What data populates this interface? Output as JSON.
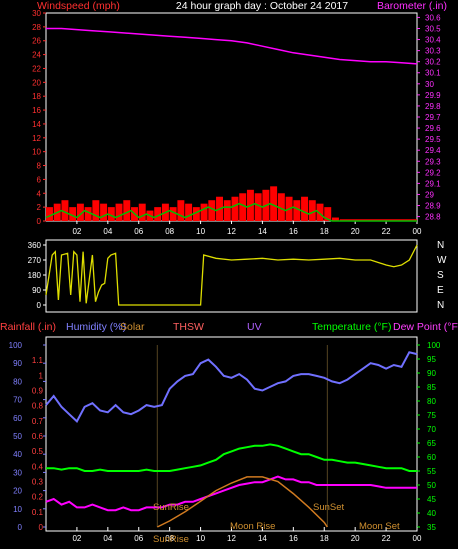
{
  "header": {
    "title": "24 hour graph day : October 24 2017",
    "left_label": "Windspeed (mph)",
    "right_label": "Barometer (.in)"
  },
  "colors": {
    "background": "#000000",
    "frame": "#ffffff",
    "wind": "#ff0000",
    "gust": "#00c000",
    "barometer": "#ff00ff",
    "direction": "#dede00",
    "humidity": "#7070ff",
    "temperature": "#00ff00",
    "dewpoint": "#ff00ff",
    "solar": "#d07a20",
    "rain_axis": "#ff4040",
    "temp_axis": "#00ff00",
    "sun_moon_text": "#d09030"
  },
  "chart_data": [
    {
      "type": "line",
      "title": "24 hour graph day : October 24 2017",
      "x_ticks": [
        "02",
        "04",
        "06",
        "08",
        "10",
        "12",
        "14",
        "16",
        "18",
        "20",
        "22",
        "00"
      ],
      "y_left": {
        "label": "Windspeed (mph)",
        "ticks": [
          0,
          2,
          4,
          6,
          8,
          10,
          12,
          14,
          16,
          18,
          20,
          22,
          24,
          26,
          28,
          30
        ],
        "range": [
          0,
          30
        ]
      },
      "y_right": {
        "label": "Barometer (.in)",
        "ticks": [
          "28.8",
          "28.9",
          "29",
          "29.1",
          "29.2",
          "29.3",
          "29.4",
          "29.5",
          "29.6",
          "29.7",
          "29.8",
          "29.9",
          "30",
          "30.1",
          "30.2",
          "30.3",
          "30.4",
          "30.5",
          "30.6"
        ],
        "range": [
          28.76,
          30.64
        ]
      },
      "series": [
        {
          "name": "Windspeed",
          "axis": "left",
          "x": [
            0,
            0.5,
            1,
            1.5,
            2,
            2.5,
            3,
            3.5,
            4,
            4.5,
            5,
            5.5,
            6,
            6.5,
            7,
            7.5,
            8,
            8.5,
            9,
            9.5,
            10,
            10.5,
            11,
            11.5,
            12,
            12.5,
            13,
            13.5,
            14,
            14.5,
            15,
            15.5,
            16,
            16.5,
            17,
            17.5,
            18,
            18.5,
            19,
            20,
            21,
            22,
            23,
            24
          ],
          "y": [
            2,
            2.5,
            3,
            2,
            2.5,
            2,
            3,
            2.5,
            2,
            2.5,
            3,
            2,
            2.5,
            1.5,
            2,
            2.5,
            2,
            3,
            2.5,
            2,
            2.5,
            3,
            3.5,
            3,
            3.5,
            4,
            4.5,
            4,
            4.5,
            5,
            4,
            3.5,
            3,
            3.5,
            3,
            2.5,
            2,
            0.5,
            0,
            0,
            0,
            0,
            0,
            0
          ]
        },
        {
          "name": "Wind gust",
          "axis": "left",
          "x": [
            0,
            0.5,
            1,
            1.5,
            2,
            2.5,
            3,
            3.5,
            4,
            4.5,
            5,
            5.5,
            6,
            6.5,
            7,
            7.5,
            8,
            8.5,
            9,
            9.5,
            10,
            10.5,
            11,
            11.5,
            12,
            12.5,
            13,
            13.5,
            14,
            14.5,
            15,
            15.5,
            16,
            16.5,
            17,
            17.5,
            18,
            18.5,
            19,
            24
          ],
          "y": [
            0.5,
            1,
            1.5,
            1,
            0.5,
            1.5,
            1,
            0.5,
            1,
            0.5,
            1,
            1.5,
            0.5,
            1,
            0.5,
            1,
            1.5,
            1,
            0.5,
            1,
            1.5,
            2,
            1.5,
            2,
            2,
            2.5,
            2,
            2.5,
            2,
            2.5,
            2,
            1.5,
            2,
            1.5,
            1,
            1.5,
            0.5,
            0,
            0,
            0
          ]
        },
        {
          "name": "Barometer",
          "axis": "right",
          "x": [
            0,
            1,
            2,
            3,
            4,
            5,
            6,
            7,
            8,
            9,
            10,
            11,
            12,
            13,
            14,
            15,
            16,
            17,
            18,
            19,
            20,
            21,
            22,
            23,
            24
          ],
          "y": [
            30.5,
            30.5,
            30.49,
            30.48,
            30.47,
            30.46,
            30.45,
            30.44,
            30.43,
            30.42,
            30.41,
            30.4,
            30.39,
            30.37,
            30.34,
            30.31,
            30.28,
            30.26,
            30.24,
            30.22,
            30.21,
            30.2,
            30.2,
            30.19,
            30.18
          ]
        }
      ]
    },
    {
      "type": "line",
      "x_ticks": [],
      "y_left": {
        "ticks": [
          0,
          90,
          180,
          270,
          360
        ],
        "range": [
          0,
          360
        ]
      },
      "y_right": {
        "ticks": [
          "N",
          "W",
          "S",
          "E",
          "N"
        ]
      },
      "series": [
        {
          "name": "Wind direction",
          "x": [
            0,
            0.4,
            0.6,
            0.8,
            1,
            1.4,
            1.6,
            1.8,
            2,
            2.2,
            2.4,
            2.6,
            3,
            3.2,
            3.4,
            3.6,
            3.8,
            4,
            4.2,
            4.5,
            4.7,
            5,
            6,
            7,
            8,
            9,
            10,
            10.2,
            11,
            12,
            13,
            14,
            15,
            16,
            17,
            18,
            19,
            20,
            21,
            22,
            22.5,
            23,
            23.5,
            24
          ],
          "y": [
            60,
            300,
            320,
            30,
            300,
            310,
            60,
            320,
            300,
            20,
            320,
            10,
            300,
            20,
            80,
            120,
            130,
            280,
            300,
            310,
            0,
            0,
            0,
            0,
            0,
            0,
            0,
            300,
            280,
            270,
            275,
            280,
            270,
            275,
            270,
            275,
            280,
            270,
            270,
            240,
            230,
            240,
            270,
            360
          ]
        }
      ]
    },
    {
      "type": "line",
      "x_ticks": [
        "02",
        "04",
        "06",
        "08",
        "10",
        "12",
        "14",
        "16",
        "18",
        "20",
        "22",
        "00"
      ],
      "legend": [
        "Rainfall (.in)",
        "Humidity (%)",
        "Solar",
        "THSW",
        "UV",
        "Temperature (°F)",
        "Dew Point (°F)"
      ],
      "y_left_rain": {
        "label": "Rainfall (.in)",
        "ticks": [
          "0",
          "0.1",
          "0.2",
          "0.3",
          "0.4",
          "0.5",
          "0.6",
          "0.7",
          "0.8",
          "0.9",
          "1",
          "1.1"
        ],
        "range": [
          0,
          1.2
        ]
      },
      "y_left_humidity": {
        "label": "Humidity (%)",
        "ticks": [
          0,
          10,
          20,
          30,
          40,
          50,
          60,
          70,
          80,
          90,
          100
        ],
        "range": [
          0,
          100
        ]
      },
      "y_right": {
        "label": "Temperature (°F)",
        "ticks": [
          35,
          40,
          45,
          50,
          55,
          60,
          65,
          70,
          75,
          80,
          85,
          90,
          95,
          100
        ],
        "range": [
          35,
          100
        ]
      },
      "annotations": [
        "SunRise",
        "SunSet",
        "Moon Rise",
        "Moon Set",
        "SunRise"
      ],
      "series": [
        {
          "name": "Humidity (%)",
          "axis": "humidity",
          "x": [
            0,
            0.5,
            1,
            1.5,
            2,
            2.5,
            3,
            3.5,
            4,
            4.5,
            5,
            5.5,
            6,
            6.5,
            7,
            7.5,
            8,
            8.5,
            9,
            9.5,
            10,
            10.5,
            11,
            11.5,
            12,
            12.5,
            13,
            13.5,
            14,
            14.5,
            15,
            15.5,
            16,
            16.5,
            17,
            17.5,
            18,
            18.5,
            19,
            19.5,
            20,
            20.5,
            21,
            21.5,
            22,
            22.5,
            23,
            23.5,
            24
          ],
          "y": [
            67,
            72,
            66,
            62,
            58,
            66,
            68,
            64,
            63,
            67,
            63,
            62,
            64,
            67,
            66,
            67,
            76,
            80,
            83,
            84,
            90,
            92,
            88,
            83,
            82,
            84,
            81,
            76,
            75,
            77,
            79,
            80,
            83,
            84,
            84,
            83,
            82,
            80,
            79,
            81,
            84,
            87,
            90,
            89,
            87,
            89,
            88,
            96,
            95
          ]
        },
        {
          "name": "Temperature (°F)",
          "axis": "temp",
          "x": [
            0,
            0.5,
            1,
            1.5,
            2,
            2.5,
            3,
            3.5,
            4,
            4.5,
            5,
            5.5,
            6,
            6.5,
            7,
            7.5,
            8,
            8.5,
            9,
            9.5,
            10,
            10.5,
            11,
            11.5,
            12,
            12.5,
            13,
            13.5,
            14,
            14.5,
            15,
            15.5,
            16,
            16.5,
            17,
            17.5,
            18,
            18.5,
            19,
            19.5,
            20,
            20.5,
            21,
            21.5,
            22,
            22.5,
            23,
            23.5,
            24
          ],
          "y": [
            56,
            56,
            55.5,
            56,
            56,
            55,
            55,
            55.5,
            55,
            55,
            55,
            55,
            55,
            55.5,
            55,
            55,
            55,
            55.5,
            56,
            56.5,
            57,
            58,
            59,
            61,
            62,
            63,
            63.5,
            64,
            64,
            64.5,
            64,
            63,
            62,
            61,
            61,
            60,
            59,
            59,
            58.5,
            58,
            58,
            57.5,
            57,
            56.5,
            56,
            56,
            56,
            55,
            55
          ]
        },
        {
          "name": "Dew Point (°F)",
          "axis": "temp",
          "x": [
            0,
            0.5,
            1,
            1.5,
            2,
            2.5,
            3,
            3.5,
            4,
            4.5,
            5,
            5.5,
            6,
            6.5,
            7,
            7.5,
            8,
            8.5,
            9,
            9.5,
            10,
            10.5,
            11,
            11.5,
            12,
            12.5,
            13,
            13.5,
            14,
            14.5,
            15,
            15.5,
            16,
            16.5,
            17,
            17.5,
            18,
            18.5,
            19,
            19.5,
            20,
            20.5,
            21,
            21.5,
            22,
            22.5,
            23,
            23.5,
            24
          ],
          "y": [
            44,
            45,
            43,
            44,
            42,
            42,
            43,
            42,
            41,
            41,
            42,
            41,
            41,
            42,
            42,
            42,
            43,
            43,
            44,
            44,
            45,
            46,
            47,
            48,
            49,
            50,
            50.5,
            51,
            51,
            52,
            53,
            52,
            52,
            51,
            51,
            50,
            50,
            50,
            50,
            50,
            50,
            50,
            50,
            49.5,
            49,
            49,
            49,
            49,
            49
          ]
        },
        {
          "name": "Solar",
          "axis": "rain",
          "x": [
            7.2,
            8,
            9,
            10,
            11,
            12,
            13,
            14,
            15,
            16,
            17,
            18,
            18.2
          ],
          "y": [
            0,
            0.04,
            0.1,
            0.17,
            0.24,
            0.29,
            0.33,
            0.33,
            0.3,
            0.22,
            0.13,
            0.03,
            0
          ]
        }
      ]
    }
  ]
}
